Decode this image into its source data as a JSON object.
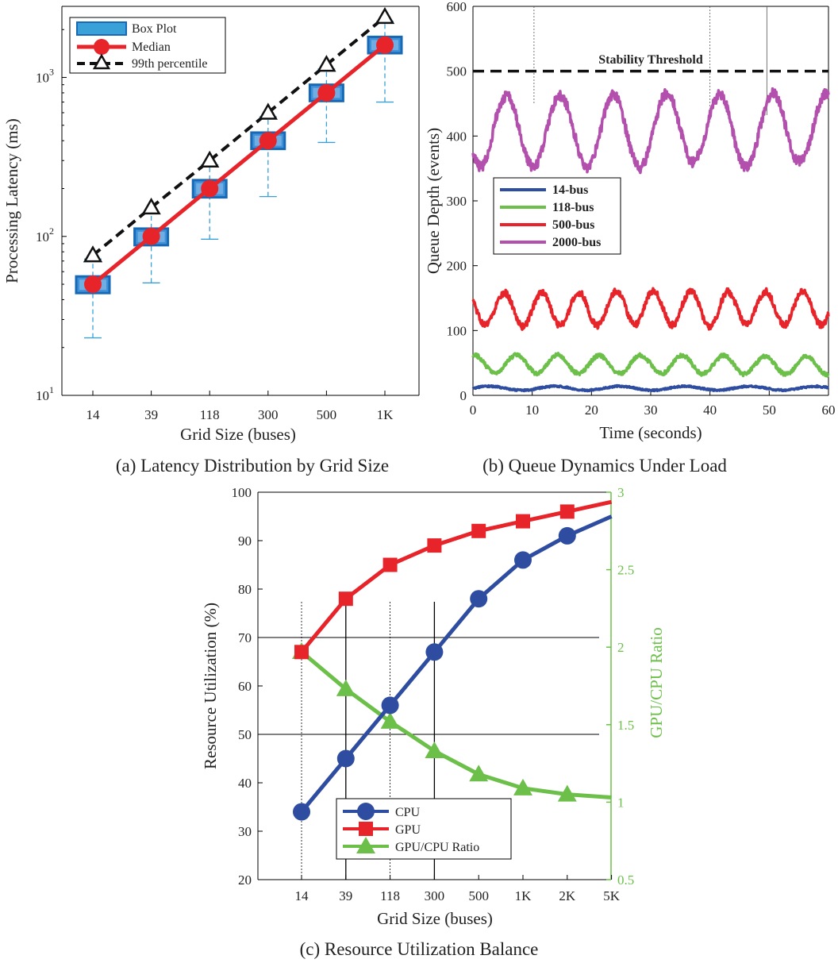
{
  "chart_data": [
    {
      "id": "a",
      "type": "box+line",
      "caption": "(a) Latency Distribution by Grid Size",
      "xlabel": "Grid Size (buses)",
      "ylabel": "Processing Latency (ms)",
      "yscale": "log",
      "ylim": [
        10,
        2800
      ],
      "yticks": [
        {
          "v": 10,
          "b": "10",
          "e": "1"
        },
        {
          "v": 100,
          "b": "10",
          "e": "2"
        },
        {
          "v": 1000,
          "b": "10",
          "e": "3"
        }
      ],
      "categories": [
        "14",
        "39",
        "118",
        "300",
        "500",
        "1K"
      ],
      "boxes": [
        {
          "whisker_low": 23,
          "q1": 44,
          "q3": 56,
          "whisker_high": 72
        },
        {
          "whisker_low": 51,
          "q1": 88,
          "q3": 112,
          "whisker_high": 140
        },
        {
          "whisker_low": 96,
          "q1": 176,
          "q3": 226,
          "whisker_high": 282
        },
        {
          "whisker_low": 178,
          "q1": 355,
          "q3": 450,
          "whisker_high": 565
        },
        {
          "whisker_low": 390,
          "q1": 710,
          "q3": 900,
          "whisker_high": 1130
        },
        {
          "whisker_low": 700,
          "q1": 1420,
          "q3": 1800,
          "whisker_high": 2250
        }
      ],
      "series": [
        {
          "name": "Median",
          "values": [
            50,
            100,
            200,
            400,
            800,
            1600
          ],
          "color": "#e8242b"
        },
        {
          "name": "99th percentile",
          "values": [
            76,
            152,
            300,
            600,
            1200,
            2400
          ],
          "color": "#111111"
        }
      ],
      "legend": [
        "Box Plot",
        "Median",
        "99th percentile"
      ],
      "legend_position": "top-left"
    },
    {
      "id": "b",
      "type": "line",
      "caption": "(b) Queue Dynamics Under Load",
      "xlabel": "Time (seconds)",
      "ylabel": "Queue Depth (events)",
      "xlim": [
        0,
        60
      ],
      "ylim": [
        0,
        600
      ],
      "xticks": [
        0,
        10,
        20,
        30,
        40,
        50,
        60
      ],
      "yticks": [
        0,
        100,
        200,
        300,
        400,
        500,
        600
      ],
      "threshold": {
        "value": 500,
        "label": "Stability Threshold"
      },
      "series": [
        {
          "name": "14-bus",
          "mean": 11,
          "amp": 3,
          "period": 11,
          "noise": 1.2,
          "color": "#2e4da0"
        },
        {
          "name": "118-bus",
          "mean": 48,
          "amp": 14,
          "period": 7,
          "noise": 3,
          "color": "#6cc04a"
        },
        {
          "name": "500-bus",
          "mean": 135,
          "amp": 26,
          "period": 6.3,
          "noise": 5,
          "color": "#e8242b"
        },
        {
          "name": "2000-bus",
          "mean": 410,
          "amp": 55,
          "period": 9,
          "noise": 8,
          "color": "#b34fad"
        }
      ],
      "legend_position": "middle-left"
    },
    {
      "id": "c",
      "type": "line",
      "caption": "(c) Resource Utilization Balance",
      "xlabel": "Grid Size (buses)",
      "ylabel": "Resource Utilization (%)",
      "ylabel_right": "GPU/CPU Ratio",
      "categories": [
        "14",
        "39",
        "118",
        "300",
        "500",
        "1K",
        "2K",
        "5K"
      ],
      "ylim": [
        20,
        100
      ],
      "yticks": [
        20,
        30,
        40,
        50,
        60,
        70,
        80,
        90,
        100
      ],
      "ylim_right": [
        0.5,
        3
      ],
      "yticks_right": [
        {
          "v": 0.5,
          "t": "0.5"
        },
        {
          "v": 1,
          "t": "1"
        },
        {
          "v": 1.5,
          "t": "1.5"
        },
        {
          "v": 2,
          "t": "2"
        },
        {
          "v": 2.5,
          "t": "2.5"
        },
        {
          "v": 3,
          "t": "3"
        }
      ],
      "series": [
        {
          "name": "CPU",
          "axis": "left",
          "marker": "circle",
          "color": "#2e4da0",
          "values": [
            34,
            45,
            56,
            67,
            78,
            86,
            91,
            95
          ]
        },
        {
          "name": "GPU",
          "axis": "left",
          "marker": "square",
          "color": "#e8242b",
          "values": [
            67,
            78,
            85,
            89,
            92,
            94,
            96,
            98
          ]
        },
        {
          "name": "GPU/CPU Ratio",
          "axis": "right",
          "marker": "triangle",
          "color": "#6cc04a",
          "values": [
            1.97,
            1.73,
            1.52,
            1.33,
            1.18,
            1.09,
            1.05,
            1.03
          ]
        }
      ],
      "legend_position": "bottom-center",
      "right_axis_color": "#6cc04a"
    }
  ]
}
